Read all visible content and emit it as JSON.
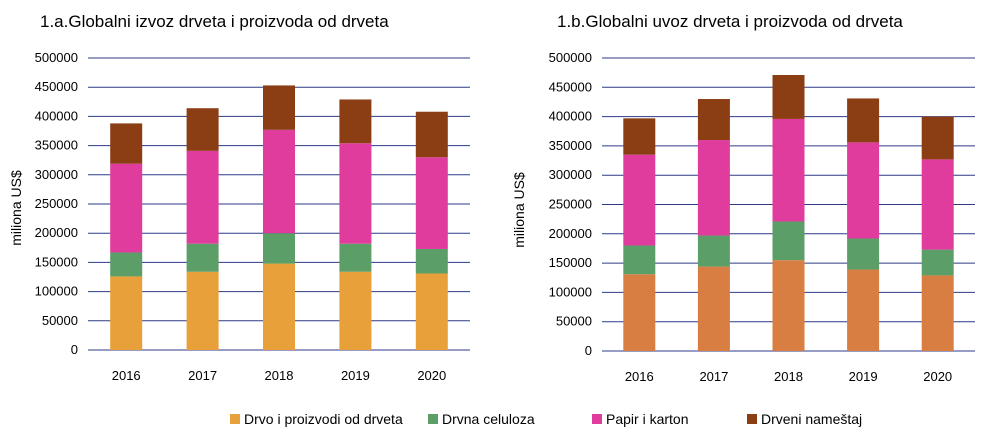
{
  "legend": [
    {
      "label": "Drvo i proizvodi od drveta",
      "color": "#E8A13A"
    },
    {
      "label": "Drvna celuloza",
      "color": "#5C9E68"
    },
    {
      "label": "Papir i karton",
      "color": "#E03C9E"
    },
    {
      "label": "Drveni nameštaj",
      "color": "#8B3E14"
    }
  ],
  "chart_data": [
    {
      "type": "bar",
      "stacked": true,
      "title": "1.a.Globalni izvoz drveta i proizvoda od drveta",
      "xlabel": "",
      "ylabel": "miliona US$",
      "ylim": [
        0,
        500000
      ],
      "yticks": [
        "500000",
        "450000",
        "400000",
        "350000",
        "300000",
        "250000",
        "200000",
        "150000",
        "100000",
        "50000",
        "0"
      ],
      "categories": [
        "2016",
        "2017",
        "2018",
        "2019",
        "2020"
      ],
      "series": [
        {
          "name": "Drvo i proizvodi od drveta",
          "color": "#E8A13A",
          "values": [
            126000,
            134000,
            148000,
            134000,
            131000
          ]
        },
        {
          "name": "Drvna celuloza",
          "color": "#5C9E68",
          "values": [
            41000,
            48000,
            52000,
            48000,
            42000
          ]
        },
        {
          "name": "Papir i karton",
          "color": "#E03C9E",
          "values": [
            152000,
            159000,
            177000,
            172000,
            157000
          ]
        },
        {
          "name": "Drveni nameštaj",
          "color": "#8B3E14",
          "values": [
            69000,
            73000,
            76000,
            75000,
            78000
          ]
        }
      ]
    },
    {
      "type": "bar",
      "stacked": true,
      "title": "1.b.Globalni uvoz drveta i proizvoda od drveta",
      "xlabel": "",
      "ylabel": "miliona US$",
      "ylim": [
        0,
        500000
      ],
      "yticks": [
        "500000",
        "450000",
        "400000",
        "350000",
        "300000",
        "250000",
        "200000",
        "150000",
        "100000",
        "50000",
        "0"
      ],
      "categories": [
        "2016",
        "2017",
        "2018",
        "2019",
        "2020"
      ],
      "series": [
        {
          "name": "Drvo i proizvodi od drveta",
          "color": "#D97E42",
          "values": [
            131000,
            144000,
            155000,
            139000,
            129000
          ]
        },
        {
          "name": "Drvna celuloza",
          "color": "#5C9E68",
          "values": [
            49000,
            53000,
            66000,
            53000,
            44000
          ]
        },
        {
          "name": "Papir i karton",
          "color": "#E03C9E",
          "values": [
            155000,
            163000,
            175000,
            164000,
            154000
          ]
        },
        {
          "name": "Drveni nameštaj",
          "color": "#8B3E14",
          "values": [
            62000,
            70000,
            75000,
            75000,
            73000
          ]
        }
      ]
    }
  ]
}
